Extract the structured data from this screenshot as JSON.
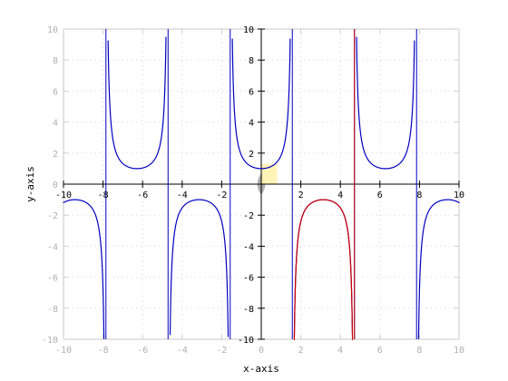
{
  "chart_data": {
    "type": "line",
    "xlabel": "x-axis",
    "ylabel": "y-axis",
    "xlim": [
      -10,
      10
    ],
    "ylim": [
      -10,
      10
    ],
    "grid": true,
    "x_ticks": [
      -10,
      -8,
      -6,
      -4,
      -2,
      0,
      2,
      4,
      6,
      8,
      10
    ],
    "y_ticks": [
      -10,
      -8,
      -6,
      -4,
      -2,
      0,
      2,
      4,
      6,
      8,
      10
    ],
    "series": [
      {
        "function": "sec(x)",
        "color": "#0000c0",
        "x_range": [
          -10,
          10
        ]
      },
      {
        "function": "sec(x)",
        "color": "#d00000",
        "x_range": [
          1.5708,
          4.7124
        ]
      }
    ],
    "shaded_regions": [
      {
        "x": [
          -0.4,
          0.4
        ],
        "y": [
          -0.7,
          0.7
        ],
        "color": "#a8a8a8",
        "shape": "lens"
      },
      {
        "x": [
          0,
          0.8
        ],
        "y": [
          0,
          1.3
        ],
        "color": "#fff2b0",
        "shape": "rect"
      }
    ]
  }
}
